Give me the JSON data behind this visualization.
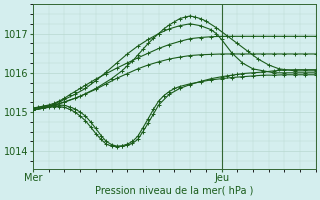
{
  "background_color": "#d4eeee",
  "grid_color": "#b8d8d0",
  "line_color": "#1a5c1a",
  "spine_color": "#336633",
  "title": "Pression niveau de la mer( hPa )",
  "yticks": [
    1014,
    1015,
    1016,
    1017
  ],
  "ylim": [
    1013.55,
    1017.75
  ],
  "xlim": [
    0,
    54
  ],
  "xtick_labels": [
    "Mer",
    "Jeu"
  ],
  "xtick_positions": [
    0,
    36
  ],
  "ver_line_x": 36,
  "series": [
    {
      "x": [
        0,
        1,
        2,
        3,
        4,
        5,
        6,
        7,
        8,
        9,
        10,
        11,
        12,
        14,
        16,
        18,
        20,
        22,
        24,
        26,
        28,
        30,
        32,
        34,
        36,
        38,
        40,
        42,
        44,
        46,
        48,
        50,
        52,
        54
      ],
      "y": [
        1015.1,
        1015.12,
        1015.15,
        1015.18,
        1015.22,
        1015.28,
        1015.35,
        1015.44,
        1015.52,
        1015.6,
        1015.68,
        1015.76,
        1015.84,
        1015.98,
        1016.12,
        1016.25,
        1016.38,
        1016.5,
        1016.62,
        1016.72,
        1016.8,
        1016.87,
        1016.9,
        1016.92,
        1016.93,
        1016.93,
        1016.93,
        1016.93,
        1016.93,
        1016.93,
        1016.93,
        1016.93,
        1016.93,
        1016.93
      ]
    },
    {
      "x": [
        0,
        2,
        4,
        6,
        8,
        10,
        12,
        14,
        16,
        18,
        20,
        22,
        24,
        26,
        28,
        30,
        32,
        34,
        35,
        36,
        38,
        40,
        42,
        44,
        46,
        48,
        50,
        52,
        54
      ],
      "y": [
        1015.05,
        1015.1,
        1015.2,
        1015.32,
        1015.45,
        1015.6,
        1015.8,
        1016.02,
        1016.25,
        1016.48,
        1016.68,
        1016.85,
        1017.0,
        1017.12,
        1017.2,
        1017.25,
        1017.2,
        1017.1,
        1017.0,
        1016.85,
        1016.5,
        1016.25,
        1016.1,
        1016.05,
        1016.0,
        1016.0,
        1016.0,
        1016.0,
        1016.0
      ]
    },
    {
      "x": [
        0,
        3,
        6,
        9,
        12,
        15,
        17,
        18,
        19,
        20,
        21,
        22,
        23,
        24,
        25,
        26,
        27,
        28,
        29,
        30,
        31,
        32,
        33,
        35,
        37,
        39,
        41,
        43,
        45,
        47,
        50,
        54
      ],
      "y": [
        1015.05,
        1015.12,
        1015.25,
        1015.4,
        1015.6,
        1015.85,
        1016.05,
        1016.18,
        1016.3,
        1016.45,
        1016.6,
        1016.75,
        1016.88,
        1017.0,
        1017.12,
        1017.22,
        1017.3,
        1017.38,
        1017.42,
        1017.45,
        1017.42,
        1017.38,
        1017.32,
        1017.15,
        1016.95,
        1016.75,
        1016.55,
        1016.35,
        1016.2,
        1016.1,
        1016.05,
        1016.05
      ]
    },
    {
      "x": [
        0,
        2,
        4,
        5,
        6,
        7,
        8,
        9,
        10,
        11,
        12,
        13,
        14,
        15,
        16,
        17,
        18,
        19,
        20,
        21,
        22,
        23,
        24,
        26,
        28,
        30,
        32,
        34,
        36,
        37,
        38,
        39,
        40,
        42,
        44,
        46,
        48,
        50,
        52,
        54
      ],
      "y": [
        1015.1,
        1015.15,
        1015.18,
        1015.18,
        1015.17,
        1015.13,
        1015.08,
        1015.0,
        1014.9,
        1014.75,
        1014.58,
        1014.4,
        1014.25,
        1014.17,
        1014.13,
        1014.13,
        1014.15,
        1014.2,
        1014.3,
        1014.5,
        1014.72,
        1014.95,
        1015.18,
        1015.45,
        1015.6,
        1015.7,
        1015.78,
        1015.85,
        1015.9,
        1015.92,
        1015.94,
        1015.96,
        1015.98,
        1016.0,
        1016.02,
        1016.05,
        1016.07,
        1016.08,
        1016.08,
        1016.08
      ]
    },
    {
      "x": [
        0,
        2,
        4,
        5,
        6,
        7,
        8,
        9,
        10,
        11,
        12,
        13,
        14,
        15,
        16,
        17,
        18,
        19,
        20,
        21,
        22,
        23,
        24,
        25,
        26,
        27,
        28,
        30,
        32,
        34,
        36,
        38,
        40,
        42,
        44,
        46,
        48,
        50,
        52,
        54
      ],
      "y": [
        1015.05,
        1015.1,
        1015.14,
        1015.14,
        1015.12,
        1015.07,
        1015.0,
        1014.9,
        1014.78,
        1014.62,
        1014.45,
        1014.3,
        1014.18,
        1014.13,
        1014.12,
        1014.14,
        1014.18,
        1014.25,
        1014.38,
        1014.6,
        1014.83,
        1015.07,
        1015.28,
        1015.42,
        1015.52,
        1015.6,
        1015.65,
        1015.72,
        1015.77,
        1015.82,
        1015.85,
        1015.88,
        1015.9,
        1015.92,
        1015.94,
        1015.94,
        1015.95,
        1015.95,
        1015.95,
        1015.95
      ]
    },
    {
      "x": [
        0,
        2,
        4,
        6,
        8,
        10,
        12,
        14,
        16,
        18,
        20,
        22,
        24,
        26,
        28,
        30,
        32,
        34,
        36,
        38,
        40,
        42,
        44,
        46,
        48,
        50,
        52,
        54
      ],
      "y": [
        1015.08,
        1015.12,
        1015.18,
        1015.26,
        1015.35,
        1015.46,
        1015.58,
        1015.72,
        1015.86,
        1015.98,
        1016.1,
        1016.2,
        1016.28,
        1016.35,
        1016.4,
        1016.44,
        1016.46,
        1016.47,
        1016.48,
        1016.48,
        1016.48,
        1016.48,
        1016.48,
        1016.48,
        1016.48,
        1016.48,
        1016.48,
        1016.48
      ]
    }
  ]
}
